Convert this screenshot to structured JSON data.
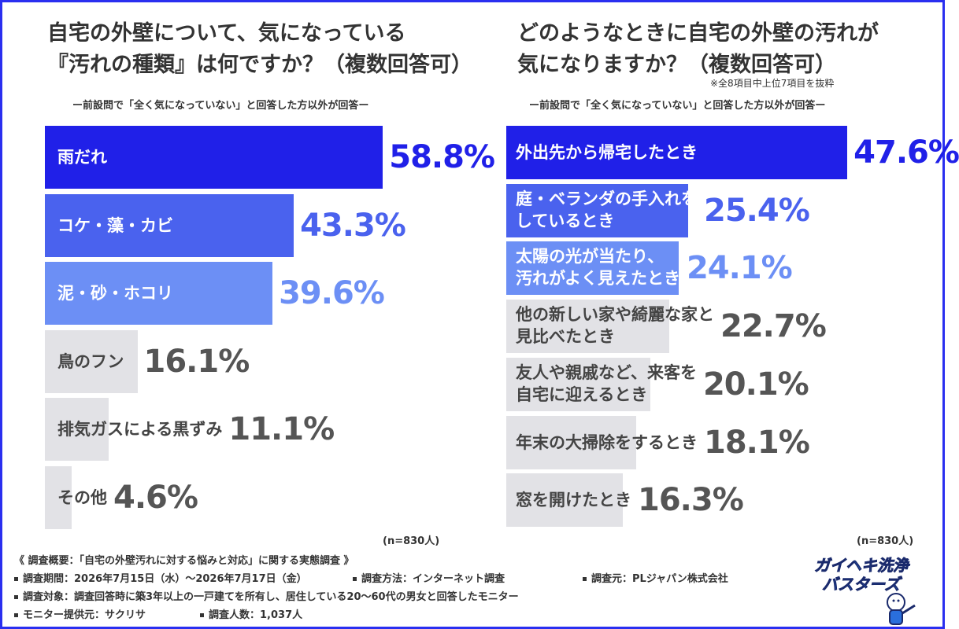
{
  "left": {
    "title_line1": "自宅の外壁について、気になっている",
    "title_line2": "『汚れの種類』は何ですか？（複数回答可）",
    "subtitle": "ー前設問で「全く気になっていない」と回答した方以外が回答ー",
    "n_label": "(n=830人)"
  },
  "right": {
    "title_line1": "どのようなときに自宅の外壁の汚れが",
    "title_line2": "気になりますか？（複数回答可）",
    "note": "※全8項目中上位7項目を抜粋",
    "subtitle": "ー前設問で「全く気になっていない」と回答した方以外が回答ー",
    "n_label": "(n=830人)"
  },
  "chart_data": [
    {
      "type": "bar",
      "orientation": "horizontal",
      "title": "自宅の外壁について、気になっている『汚れの種類』は何ですか？（複数回答可）",
      "categories": [
        "雨だれ",
        "コケ・藻・カビ",
        "泥・砂・ホコリ",
        "鳥のフン",
        "排気ガスによる黒ずみ",
        "その他"
      ],
      "labels_line2": [
        "",
        "",
        "",
        "",
        "",
        ""
      ],
      "values": [
        58.8,
        43.3,
        39.6,
        16.1,
        11.1,
        4.6
      ],
      "value_labels": [
        "58.8%",
        "43.3%",
        "39.6%",
        "16.1%",
        "11.1%",
        "4.6%"
      ],
      "bar_colors": [
        "#2020e8",
        "#4a62ee",
        "#6c8ff5",
        "#e2e2e6",
        "#e2e2e6",
        "#e2e2e6"
      ],
      "value_colors": [
        "#2020e8",
        "#4a62ee",
        "#6c8ff5",
        "#555555",
        "#555555",
        "#555555"
      ],
      "label_colors": [
        "#ffffff",
        "#ffffff",
        "#ffffff",
        "#444444",
        "#444444",
        "#444444"
      ],
      "xlim": [
        0,
        100
      ]
    },
    {
      "type": "bar",
      "orientation": "horizontal",
      "title": "どのようなときに自宅の外壁の汚れが気になりますか？（複数回答可）",
      "categories": [
        "外出先から帰宅したとき",
        "庭・ベランダの手入れを",
        "太陽の光が当たり、",
        "他の新しい家や綺麗な家と",
        "友人や親戚など、来客を",
        "年末の大掃除をするとき",
        "窓を開けたとき"
      ],
      "labels_line2": [
        "",
        "しているとき",
        "汚れがよく見えたとき",
        "見比べたとき",
        "自宅に迎えるとき",
        "",
        ""
      ],
      "values": [
        47.6,
        25.4,
        24.1,
        22.7,
        20.1,
        18.1,
        16.3
      ],
      "value_labels": [
        "47.6%",
        "25.4%",
        "24.1%",
        "22.7%",
        "20.1%",
        "18.1%",
        "16.3%"
      ],
      "bar_colors": [
        "#2020e8",
        "#4a62ee",
        "#6c8ff5",
        "#e2e2e6",
        "#e2e2e6",
        "#e2e2e6",
        "#e2e2e6"
      ],
      "value_colors": [
        "#2020e8",
        "#4a62ee",
        "#6c8ff5",
        "#555555",
        "#555555",
        "#555555",
        "#555555"
      ],
      "label_colors": [
        "#ffffff",
        "#ffffff",
        "#ffffff",
        "#444444",
        "#444444",
        "#444444",
        "#444444"
      ],
      "xlim": [
        0,
        100
      ]
    }
  ],
  "footer": {
    "line1": "《 調査概要：「自宅の外壁汚れに対する悩みと対応」に関する実態調査 》",
    "period": "調査期間：2026年7月15日（水）〜2026年7月17日（金）",
    "method": "調査方法：インターネット調査",
    "source": "調査元：PLジャパン株式会社",
    "target": "調査対象：調査回答時に築3年以上の一戸建てを所有し、居住している20〜60代の男女と回答したモニター",
    "provider": "モニター提供元：サクリサ",
    "count": "調査人数：1,037人"
  },
  "logo": {
    "line1": "ガイヘキ洗浄",
    "line2": "バスターズ",
    "colors": {
      "blue": "#2a6fdc",
      "dark": "#1a2a6c"
    }
  }
}
